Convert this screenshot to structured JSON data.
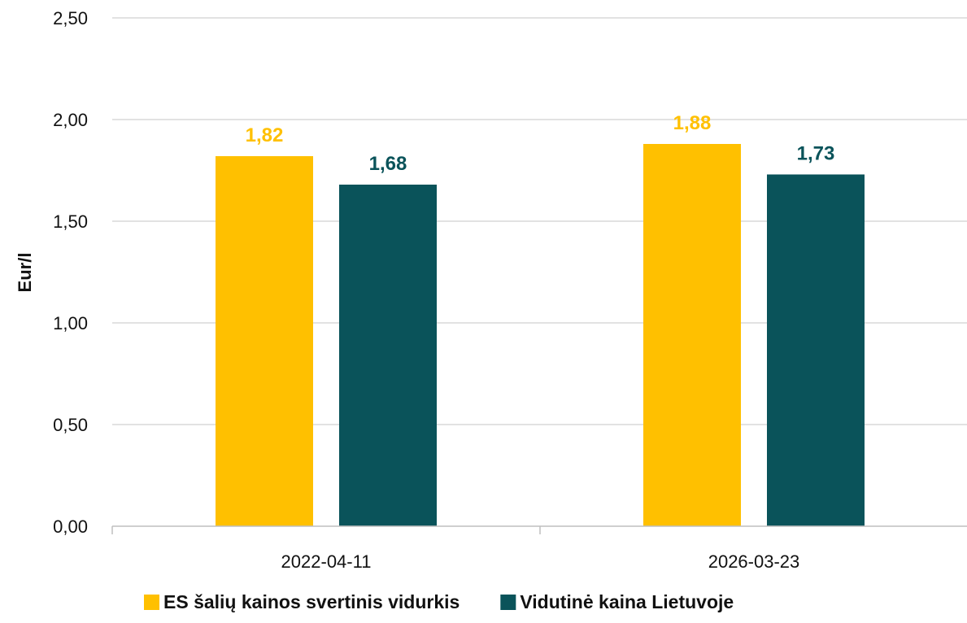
{
  "chart_data": {
    "type": "bar",
    "ylabel": "Eur/l",
    "ylim": [
      0,
      2.5
    ],
    "yticks": [
      0,
      0.5,
      1.0,
      1.5,
      2.0,
      2.5
    ],
    "ytick_labels": [
      "0,00",
      "0,50",
      "1,00",
      "1,50",
      "2,00",
      "2,50"
    ],
    "categories": [
      "2022-04-11",
      "2026-03-23"
    ],
    "series": [
      {
        "name": "ES šalių kainos svertinis vidurkis",
        "color": "#FFC000",
        "values": [
          1.82,
          1.88
        ],
        "labels": [
          "1,82",
          "1,88"
        ]
      },
      {
        "name": "Vidutinė kaina Lietuvoje",
        "color": "#0A535A",
        "values": [
          1.68,
          1.73
        ],
        "labels": [
          "1,68",
          "1,73"
        ]
      }
    ],
    "grid": true,
    "legend": "bottom"
  }
}
